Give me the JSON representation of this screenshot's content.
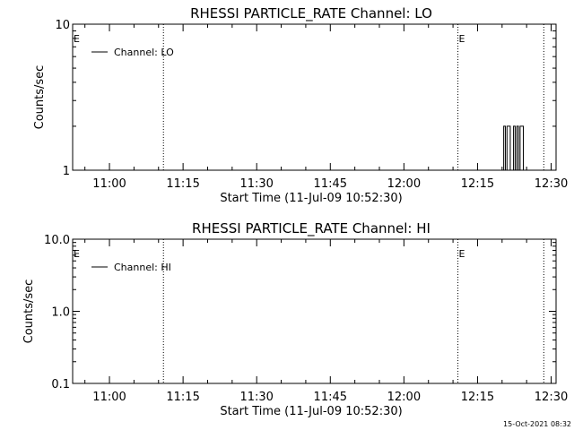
{
  "chart_data": [
    {
      "type": "line",
      "title": "RHESSI PARTICLE_RATE Channel: LO",
      "xlabel": "Start Time (11-Jul-09 10:52:30)",
      "ylabel": "Counts/sec",
      "yscale": "log",
      "ylim": [
        1,
        10
      ],
      "xlim": [
        "10:52:30",
        "12:31:00"
      ],
      "x_ticks": [
        "11:00",
        "11:15",
        "11:30",
        "11:45",
        "12:00",
        "12:15",
        "12:30"
      ],
      "y_ticks": [
        "1",
        "10"
      ],
      "grid": false,
      "legend_position": "top-left",
      "event_markers": [
        "11:11:00",
        "12:11:00",
        "12:28:30"
      ],
      "event_flags": [
        {
          "label": "E",
          "x": "10:52:30"
        },
        {
          "label": "E",
          "x": "12:11:00"
        }
      ],
      "series": [
        {
          "name": "Channel: LO",
          "x": [
            "12:20:00",
            "12:20:20",
            "12:20:40",
            "12:21:00",
            "12:21:20",
            "12:21:40",
            "12:22:00",
            "12:22:20",
            "12:22:40",
            "12:23:00",
            "12:23:20",
            "12:23:40",
            "12:24:00",
            "12:24:20",
            "12:24:40"
          ],
          "y": [
            1,
            2,
            1,
            2,
            2,
            1,
            1,
            2,
            1,
            2,
            1,
            2,
            2,
            1,
            1
          ]
        }
      ]
    },
    {
      "type": "line",
      "title": "RHESSI PARTICLE_RATE Channel: HI",
      "xlabel": "Start Time (11-Jul-09 10:52:30)",
      "ylabel": "Counts/sec",
      "yscale": "log",
      "ylim": [
        0.1,
        10
      ],
      "xlim": [
        "10:52:30",
        "12:31:00"
      ],
      "x_ticks": [
        "11:00",
        "11:15",
        "11:30",
        "11:45",
        "12:00",
        "12:15",
        "12:30"
      ],
      "y_ticks": [
        "0.1",
        "1.0",
        "10.0"
      ],
      "grid": false,
      "legend_position": "top-left",
      "event_markers": [
        "11:11:00",
        "12:11:00",
        "12:28:30"
      ],
      "event_flags": [
        {
          "label": "E",
          "x": "10:52:30"
        },
        {
          "label": "E",
          "x": "12:11:00"
        }
      ],
      "series": [
        {
          "name": "Channel: HI",
          "x": [],
          "y": []
        }
      ]
    }
  ],
  "footer": {
    "timestamp": "15-Oct-2021 08:32"
  }
}
